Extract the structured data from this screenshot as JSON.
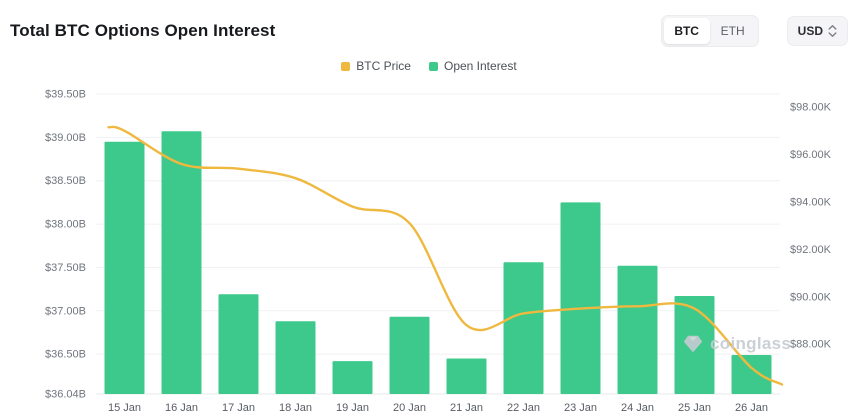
{
  "header": {
    "title": "Total BTC Options Open Interest",
    "coin_tabs": [
      {
        "label": "BTC",
        "selected": true
      },
      {
        "label": "ETH",
        "selected": false
      }
    ],
    "currency_button": {
      "label": "USD"
    }
  },
  "legend": {
    "items": [
      {
        "label": "BTC Price",
        "color": "#EFB83F"
      },
      {
        "label": "Open Interest",
        "color": "#3DC98B"
      }
    ]
  },
  "watermark": {
    "label": "coinglass"
  },
  "chart_data": {
    "type": "bar+line",
    "title": "Total BTC Options Open Interest",
    "categories": [
      "15 Jan",
      "16 Jan",
      "17 Jan",
      "18 Jan",
      "19 Jan",
      "20 Jan",
      "21 Jan",
      "22 Jan",
      "23 Jan",
      "24 Jan",
      "25 Jan",
      "26 Jan"
    ],
    "series": [
      {
        "name": "Open Interest",
        "type": "bar",
        "axis": "left",
        "unit": "$B",
        "color": "#3DC98B",
        "values": [
          38.95,
          39.07,
          37.19,
          36.88,
          36.42,
          36.93,
          36.45,
          37.56,
          38.25,
          37.52,
          37.17,
          36.49
        ]
      },
      {
        "name": "BTC Price",
        "type": "line",
        "axis": "right",
        "unit": "$K",
        "color": "#EFB83F",
        "values": [
          97.0,
          95.6,
          95.4,
          95.0,
          93.8,
          93.1,
          88.8,
          89.3,
          89.5,
          89.6,
          89.5,
          87.0
        ],
        "lead_in": 97.15,
        "tail_out": 86.3
      }
    ],
    "left_axis": {
      "min": 36.04,
      "max": 39.5,
      "ticks": [
        {
          "v": 39.5,
          "label": "$39.50B"
        },
        {
          "v": 39.0,
          "label": "$39.00B"
        },
        {
          "v": 38.5,
          "label": "$38.50B"
        },
        {
          "v": 38.0,
          "label": "$38.00B"
        },
        {
          "v": 37.5,
          "label": "$37.50B"
        },
        {
          "v": 37.0,
          "label": "$37.00B"
        },
        {
          "v": 36.5,
          "label": "$36.50B"
        },
        {
          "v": 36.04,
          "label": "$36.04B"
        }
      ]
    },
    "right_axis": {
      "min": 85.9,
      "max": 98.55,
      "ticks": [
        {
          "v": 98,
          "label": "$98.00K"
        },
        {
          "v": 96,
          "label": "$96.00K"
        },
        {
          "v": 94,
          "label": "$94.00K"
        },
        {
          "v": 92,
          "label": "$92.00K"
        },
        {
          "v": 90,
          "label": "$90.00K"
        },
        {
          "v": 88,
          "label": "$88.00K"
        }
      ]
    },
    "grid": "horizontal",
    "legend_position": "top-center"
  }
}
